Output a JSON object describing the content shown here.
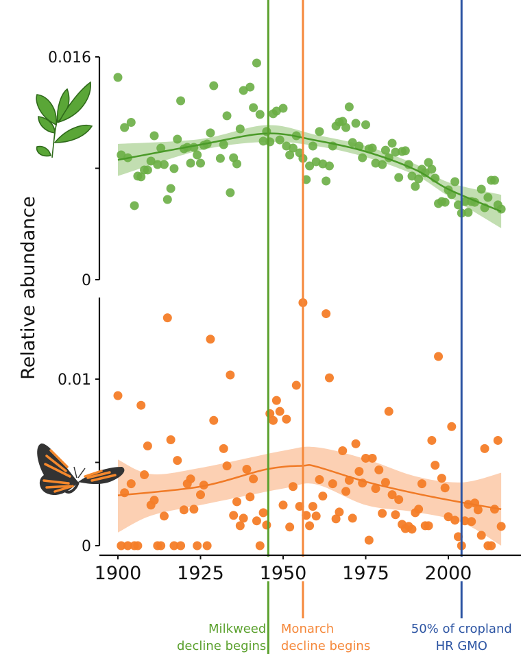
{
  "chart_data": {
    "type": "scatter",
    "ylabel": "Relative abundance",
    "x_ticks": [
      "1900",
      "1925",
      "1950",
      "1975",
      "2000"
    ],
    "x_tick_values": [
      1900,
      1925,
      1950,
      1975,
      2000
    ],
    "xlim": [
      1894,
      2025
    ],
    "annotations": [
      {
        "id": "milkweed",
        "year": 1945.5,
        "lines": [
          "Milkweed",
          "decline begins"
        ],
        "color": "#5aa02c"
      },
      {
        "id": "monarch",
        "year": 1956,
        "lines": [
          "Monarch",
          "decline begins"
        ],
        "color": "#f5883a"
      },
      {
        "id": "gmo",
        "year": 2004,
        "lines": [
          "50% of cropland",
          "HR GMO"
        ],
        "color": "#2d55a3"
      }
    ],
    "panels": [
      {
        "name": "Milkweed",
        "icon": "milkweed-plant-icon",
        "ylim": [
          0,
          0.016
        ],
        "y_tick_labels": [
          "0.016",
          "0"
        ],
        "y_tick_values": [
          0.016,
          0.008,
          0
        ],
        "y_labeled_values": [
          0.016,
          0
        ],
        "point_color": "#6aae45",
        "line_color": "#4a9a28",
        "band_color": "#b7d8a3",
        "points": [
          [
            1900,
            0.01453
          ],
          [
            1902,
            0.01093
          ],
          [
            1904,
            0.0113
          ],
          [
            1901,
            0.00896
          ],
          [
            1903,
            0.00876
          ],
          [
            1905,
            0.00532
          ],
          [
            1906,
            0.00744
          ],
          [
            1907,
            0.00739
          ],
          [
            1908,
            0.00788
          ],
          [
            1909,
            0.00788
          ],
          [
            1910,
            0.00852
          ],
          [
            1912,
            0.00827
          ],
          [
            1914,
            0.00827
          ],
          [
            1911,
            0.01034
          ],
          [
            1913,
            0.00945
          ],
          [
            1915,
            0.00576
          ],
          [
            1916,
            0.00655
          ],
          [
            1917,
            0.00798
          ],
          [
            1919,
            0.01285
          ],
          [
            1918,
            0.01009
          ],
          [
            1920,
            0.0094
          ],
          [
            1921,
            0.0095
          ],
          [
            1923,
            0.0095
          ],
          [
            1924,
            0.00896
          ],
          [
            1922,
            0.00837
          ],
          [
            1925,
            0.00837
          ],
          [
            1926,
            0.00965
          ],
          [
            1927,
            0.00975
          ],
          [
            1928,
            0.01054
          ],
          [
            1929,
            0.01393
          ],
          [
            1931,
            0.00871
          ],
          [
            1932,
            0.0097
          ],
          [
            1934,
            0.00625
          ],
          [
            1935,
            0.00876
          ],
          [
            1936,
            0.00832
          ],
          [
            1933,
            0.01177
          ],
          [
            1937,
            0.01083
          ],
          [
            1938,
            0.01359
          ],
          [
            1940,
            0.01383
          ],
          [
            1941,
            0.01236
          ],
          [
            1942,
            0.01556
          ],
          [
            1943,
            0.01187
          ],
          [
            1944,
            0.00995
          ],
          [
            1945,
            0.01064
          ],
          [
            1946,
            0.0099
          ],
          [
            1947,
            0.01192
          ],
          [
            1948,
            0.01211
          ],
          [
            1950,
            0.01231
          ],
          [
            1949,
            0.01004
          ],
          [
            1951,
            0.0096
          ],
          [
            1953,
            0.00945
          ],
          [
            1952,
            0.00896
          ],
          [
            1954,
            0.01034
          ],
          [
            1955,
            0.00911
          ],
          [
            1956,
            0.00871
          ],
          [
            1957,
            0.00719
          ],
          [
            1958,
            0.00817
          ],
          [
            1959,
            0.0096
          ],
          [
            1960,
            0.00847
          ],
          [
            1961,
            0.01064
          ],
          [
            1962,
            0.00832
          ],
          [
            1963,
            0.00709
          ],
          [
            1964,
            0.00817
          ],
          [
            1965,
            0.0096
          ],
          [
            1966,
            0.01103
          ],
          [
            1967,
            0.01132
          ],
          [
            1968,
            0.01137
          ],
          [
            1969,
            0.01093
          ],
          [
            1970,
            0.01241
          ],
          [
            1971,
            0.00985
          ],
          [
            1972,
            0.01123
          ],
          [
            1973,
            0.0096
          ],
          [
            1974,
            0.00876
          ],
          [
            1975,
            0.01113
          ],
          [
            1976,
            0.0094
          ],
          [
            1977,
            0.00945
          ],
          [
            1978,
            0.00837
          ],
          [
            1980,
            0.00827
          ],
          [
            1981,
            0.0093
          ],
          [
            1982,
            0.00876
          ],
          [
            1983,
            0.0098
          ],
          [
            1984,
            0.00916
          ],
          [
            1985,
            0.00734
          ],
          [
            1986,
            0.00921
          ],
          [
            1987,
            0.00926
          ],
          [
            1988,
            0.00827
          ],
          [
            1989,
            0.00744
          ],
          [
            1990,
            0.0067
          ],
          [
            1991,
            0.00724
          ],
          [
            1992,
            0.00793
          ],
          [
            1993,
            0.00768
          ],
          [
            1994,
            0.00842
          ],
          [
            1995,
            0.00793
          ],
          [
            1996,
            0.00729
          ],
          [
            1997,
            0.00547
          ],
          [
            1998,
            0.00561
          ],
          [
            1999,
            0.00556
          ],
          [
            2000,
            0.00645
          ],
          [
            2001,
            0.00611
          ],
          [
            2002,
            0.00704
          ],
          [
            2003,
            0.00537
          ],
          [
            2004,
            0.00478
          ],
          [
            2005,
            0.00561
          ],
          [
            2006,
            0.00483
          ],
          [
            2007,
            0.00561
          ],
          [
            2008,
            0.00556
          ],
          [
            2010,
            0.0065
          ],
          [
            2011,
            0.00517
          ],
          [
            2012,
            0.00591
          ],
          [
            2013,
            0.00714
          ],
          [
            2014,
            0.00714
          ],
          [
            2015,
            0.00537
          ],
          [
            2016,
            0.00507
          ]
        ],
        "fit": [
          [
            1900,
            0.0086
          ],
          [
            1925,
            0.0097
          ],
          [
            1945,
            0.0105
          ],
          [
            1960,
            0.01
          ],
          [
            1975,
            0.0092
          ],
          [
            1990,
            0.0079
          ],
          [
            2000,
            0.0065
          ],
          [
            2016,
            0.0049
          ]
        ],
        "ci_upper": [
          [
            1900,
            0.00975
          ],
          [
            1925,
            0.0101
          ],
          [
            1945,
            0.0111
          ],
          [
            1960,
            0.0104
          ],
          [
            1975,
            0.0096
          ],
          [
            1990,
            0.0083
          ],
          [
            2000,
            0.007
          ],
          [
            2016,
            0.0061
          ]
        ],
        "ci_lower": [
          [
            1900,
            0.00745
          ],
          [
            1925,
            0.0093
          ],
          [
            1945,
            0.0099
          ],
          [
            1960,
            0.0096
          ],
          [
            1975,
            0.0088
          ],
          [
            1990,
            0.0075
          ],
          [
            2000,
            0.006
          ],
          [
            2016,
            0.0037
          ]
        ]
      },
      {
        "name": "Monarch",
        "icon": "monarch-butterfly-icon",
        "ylim": [
          0,
          0.0149
        ],
        "y_tick_labels": [
          "0.01",
          "0"
        ],
        "y_tick_values": [
          0.01,
          0.005,
          0
        ],
        "y_labeled_values": [
          0.01,
          0
        ],
        "point_color": "#f47d28",
        "line_color": "#f07a26",
        "band_color": "#fcc8a6",
        "points": [
          [
            1901,
            0
          ],
          [
            1903,
            0
          ],
          [
            1905,
            0
          ],
          [
            1906,
            0
          ],
          [
            1912,
            0
          ],
          [
            1913,
            0
          ],
          [
            1917,
            0
          ],
          [
            1919,
            0
          ],
          [
            1924,
            0
          ],
          [
            1927,
            0
          ],
          [
            1943,
            0
          ],
          [
            1900,
            0.00901
          ],
          [
            1902,
            0.00318
          ],
          [
            1904,
            0.00372
          ],
          [
            1907,
            0.00843
          ],
          [
            1908,
            0.00426
          ],
          [
            1909,
            0.00599
          ],
          [
            1910,
            0.00244
          ],
          [
            1911,
            0.00273
          ],
          [
            1914,
            0.00178
          ],
          [
            1915,
            0.01368
          ],
          [
            1916,
            0.00636
          ],
          [
            1918,
            0.00512
          ],
          [
            1920,
            0.00215
          ],
          [
            1921,
            0.00372
          ],
          [
            1922,
            0.00401
          ],
          [
            1923,
            0.00219
          ],
          [
            1925,
            0.00306
          ],
          [
            1926,
            0.00364
          ],
          [
            1928,
            0.0124
          ],
          [
            1929,
            0.00752
          ],
          [
            1932,
            0.00583
          ],
          [
            1933,
            0.00479
          ],
          [
            1934,
            0.01025
          ],
          [
            1935,
            0.00182
          ],
          [
            1936,
            0.00264
          ],
          [
            1937,
            0.0012
          ],
          [
            1938,
            0.00165
          ],
          [
            1939,
            0.00459
          ],
          [
            1940,
            0.00293
          ],
          [
            1941,
            0.00401
          ],
          [
            1942,
            0.00149
          ],
          [
            1944,
            0.00198
          ],
          [
            1945,
            0.00124
          ],
          [
            1946,
            0.00793
          ],
          [
            1947,
            0.00752
          ],
          [
            1948,
            0.00872
          ],
          [
            1949,
            0.00806
          ],
          [
            1950,
            0.00244
          ],
          [
            1951,
            0.0076
          ],
          [
            1952,
            0.00112
          ],
          [
            1953,
            0.00355
          ],
          [
            1954,
            0.00963
          ],
          [
            1955,
            0.00236
          ],
          [
            1956,
            0.01459
          ],
          [
            1957,
            0.00182
          ],
          [
            1958,
            0.0012
          ],
          [
            1959,
            0.00236
          ],
          [
            1960,
            0.00178
          ],
          [
            1961,
            0.00397
          ],
          [
            1962,
            0.00298
          ],
          [
            1963,
            0.01393
          ],
          [
            1964,
            0.01008
          ],
          [
            1965,
            0.00372
          ],
          [
            1966,
            0.00161
          ],
          [
            1967,
            0.00202
          ],
          [
            1968,
            0.0057
          ],
          [
            1969,
            0.00326
          ],
          [
            1970,
            0.00393
          ],
          [
            1971,
            0.00165
          ],
          [
            1972,
            0.00612
          ],
          [
            1973,
            0.00446
          ],
          [
            1974,
            0.00376
          ],
          [
            1975,
            0.00525
          ],
          [
            1976,
            0.00033
          ],
          [
            1977,
            0.00525
          ],
          [
            1978,
            0.00343
          ],
          [
            1979,
            0.00455
          ],
          [
            1980,
            0.00194
          ],
          [
            1981,
            0.0038
          ],
          [
            1982,
            0.00806
          ],
          [
            1983,
            0.00306
          ],
          [
            1984,
            0.00186
          ],
          [
            1985,
            0.00277
          ],
          [
            1986,
            0.00128
          ],
          [
            1987,
            0.00103
          ],
          [
            1988,
            0.00116
          ],
          [
            1989,
            0.00099
          ],
          [
            1990,
            0.00198
          ],
          [
            1991,
            0.00219
          ],
          [
            1992,
            0.00372
          ],
          [
            1993,
            0.0012
          ],
          [
            1994,
            0.0012
          ],
          [
            1995,
            0.00632
          ],
          [
            1996,
            0.00483
          ],
          [
            1997,
            0.01136
          ],
          [
            1998,
            0.00405
          ],
          [
            1999,
            0.00347
          ],
          [
            2000,
            0.00174
          ],
          [
            2001,
            0.00715
          ],
          [
            2002,
            0.00153
          ],
          [
            2003,
            0.00054
          ],
          [
            2004,
            0
          ],
          [
            2005,
            0.00149
          ],
          [
            2006,
            0.00248
          ],
          [
            2007,
            0.00145
          ],
          [
            2008,
            0.00256
          ],
          [
            2009,
            0.00215
          ],
          [
            2010,
            0.00062
          ],
          [
            2011,
            0.00583
          ],
          [
            2012,
            0
          ],
          [
            2013,
            0
          ],
          [
            2014,
            0.00219
          ],
          [
            2015,
            0.00632
          ],
          [
            2016,
            0.00116
          ]
        ],
        "fit": [
          [
            1900,
            0.00302
          ],
          [
            1925,
            0.00355
          ],
          [
            1945,
            0.00459
          ],
          [
            1956,
            0.0048
          ],
          [
            1960,
            0.00475
          ],
          [
            1975,
            0.00384
          ],
          [
            1990,
            0.00314
          ],
          [
            2004,
            0.0026
          ],
          [
            2016,
            0.00219
          ]
        ],
        "ci_upper": [
          [
            1900,
            0.00517
          ],
          [
            1910,
            0.0043
          ],
          [
            1925,
            0.00467
          ],
          [
            1950,
            0.0057
          ],
          [
            1960,
            0.00591
          ],
          [
            1975,
            0.0052
          ],
          [
            1990,
            0.00417
          ],
          [
            2004,
            0.0038
          ],
          [
            2016,
            0.00438
          ]
        ],
        "ci_lower": [
          [
            1900,
            0.00079
          ],
          [
            1910,
            0.0018
          ],
          [
            1925,
            0.00244
          ],
          [
            1950,
            0.00343
          ],
          [
            1960,
            0.00368
          ],
          [
            1975,
            0.00244
          ],
          [
            1990,
            0.00202
          ],
          [
            2004,
            0.0014
          ],
          [
            2016,
            0.0
          ]
        ]
      }
    ]
  }
}
